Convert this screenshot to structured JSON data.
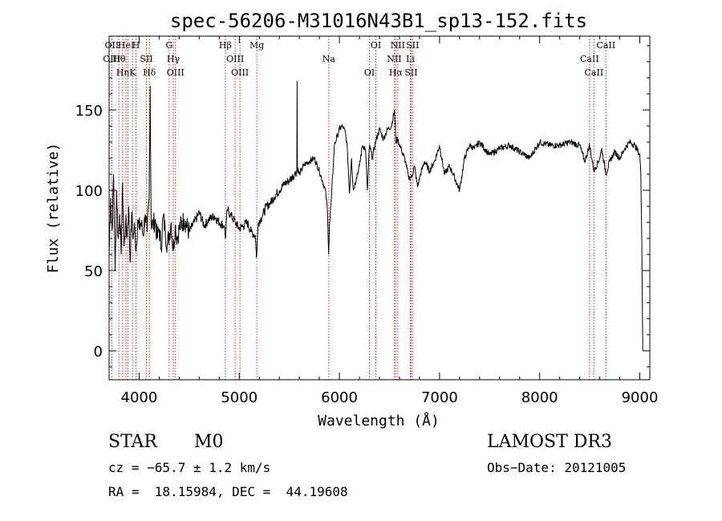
{
  "chart_data": {
    "type": "line",
    "title": "spec-56206-M31016N43B1_sp13-152.fits",
    "xlabel": "Wavelength (Å)",
    "ylabel": "Flux (relative)",
    "xlim": [
      3700,
      9100
    ],
    "ylim": [
      -18,
      196
    ],
    "xticks": [
      4000,
      5000,
      6000,
      7000,
      8000,
      9000
    ],
    "yticks": [
      0,
      50,
      100,
      150
    ],
    "line_color": "#000000",
    "marker_color": "#cc2222",
    "series": [
      {
        "name": "flux",
        "x": [
          3700,
          3715,
          3730,
          3745,
          3760,
          3775,
          3790,
          3805,
          3820,
          3835,
          3850,
          3865,
          3880,
          3895,
          3910,
          3925,
          3940,
          3955,
          3970,
          3985,
          4000,
          4020,
          4040,
          4060,
          4080,
          4100,
          4110,
          4120,
          4140,
          4160,
          4180,
          4200,
          4220,
          4240,
          4260,
          4280,
          4300,
          4320,
          4340,
          4360,
          4380,
          4400,
          4450,
          4500,
          4550,
          4600,
          4650,
          4700,
          4750,
          4800,
          4850,
          4861,
          4880,
          4920,
          4960,
          5000,
          5040,
          5080,
          5120,
          5160,
          5172,
          5190,
          5230,
          5270,
          5310,
          5350,
          5400,
          5450,
          5500,
          5550,
          5575,
          5577,
          5580,
          5600,
          5650,
          5700,
          5750,
          5800,
          5830,
          5860,
          5880,
          5893,
          5900,
          5920,
          5950,
          5980,
          6000,
          6030,
          6060,
          6080,
          6100,
          6120,
          6140,
          6170,
          6200,
          6230,
          6260,
          6280,
          6300,
          6330,
          6360,
          6400,
          6440,
          6480,
          6520,
          6550,
          6563,
          6580,
          6620,
          6660,
          6690,
          6720,
          6750,
          6780,
          6810,
          6850,
          6900,
          6950,
          7000,
          7050,
          7100,
          7150,
          7200,
          7250,
          7300,
          7350,
          7400,
          7500,
          7600,
          7700,
          7800,
          7900,
          8000,
          8100,
          8200,
          8300,
          8400,
          8450,
          8498,
          8542,
          8600,
          8620,
          8662,
          8700,
          8750,
          8800,
          8850,
          8900,
          8950,
          9000,
          9010,
          9020,
          9030
        ],
        "y": [
          60,
          95,
          75,
          110,
          50,
          100,
          70,
          85,
          60,
          105,
          65,
          80,
          72,
          90,
          55,
          85,
          70,
          78,
          62,
          82,
          76,
          80,
          72,
          85,
          74,
          95,
          165,
          80,
          78,
          82,
          70,
          76,
          64,
          84,
          75,
          66,
          72,
          80,
          62,
          78,
          70,
          76,
          82,
          74,
          80,
          86,
          78,
          82,
          84,
          80,
          78,
          70,
          88,
          84,
          80,
          76,
          78,
          80,
          74,
          72,
          58,
          80,
          84,
          90,
          92,
          96,
          100,
          104,
          106,
          110,
          112,
          168,
          114,
          110,
          116,
          118,
          120,
          112,
          106,
          100,
          88,
          60,
          78,
          95,
          128,
          134,
          138,
          140,
          136,
          125,
          98,
          120,
          100,
          108,
          115,
          128,
          126,
          100,
          128,
          120,
          130,
          138,
          132,
          138,
          140,
          150,
          130,
          132,
          125,
          118,
          108,
          108,
          115,
          102,
          110,
          118,
          112,
          118,
          128,
          110,
          115,
          108,
          100,
          120,
          128,
          126,
          130,
          122,
          126,
          128,
          124,
          120,
          130,
          128,
          128,
          130,
          128,
          118,
          128,
          112,
          120,
          126,
          110,
          118,
          124,
          120,
          126,
          130,
          128,
          122,
          110,
          70,
          0
        ]
      }
    ],
    "line_markers": [
      {
        "wave": 3727,
        "labels": [
          "OII",
          "OIII"
        ]
      },
      {
        "wave": 3798,
        "labels": [
          "Hθ"
        ]
      },
      {
        "wave": 3835,
        "labels": [
          "Hη"
        ]
      },
      {
        "wave": 3869,
        "labels": [
          "HeI"
        ]
      },
      {
        "wave": 3889,
        "labels": [
          ""
        ]
      },
      {
        "wave": 3934,
        "labels": [
          "K"
        ]
      },
      {
        "wave": 3969,
        "labels": [
          "H"
        ]
      },
      {
        "wave": 4072,
        "labels": [
          "SII"
        ]
      },
      {
        "wave": 4102,
        "labels": [
          "Hδ"
        ]
      },
      {
        "wave": 4300,
        "labels": [
          "G"
        ]
      },
      {
        "wave": 4341,
        "labels": [
          "Hγ"
        ]
      },
      {
        "wave": 4363,
        "labels": [
          "OIII"
        ]
      },
      {
        "wave": 4861,
        "labels": [
          "Hβ"
        ]
      },
      {
        "wave": 4959,
        "labels": [
          "OIII"
        ]
      },
      {
        "wave": 5007,
        "labels": [
          "OIII"
        ]
      },
      {
        "wave": 5175,
        "labels": [
          "Mg"
        ]
      },
      {
        "wave": 5894,
        "labels": [
          "Na"
        ]
      },
      {
        "wave": 6300,
        "labels": [
          "OI"
        ]
      },
      {
        "wave": 6364,
        "labels": [
          "OI"
        ]
      },
      {
        "wave": 6548,
        "labels": [
          "NII"
        ]
      },
      {
        "wave": 6563,
        "labels": [
          "Hα"
        ]
      },
      {
        "wave": 6583,
        "labels": [
          "NII"
        ]
      },
      {
        "wave": 6708,
        "labels": [
          "Li"
        ]
      },
      {
        "wave": 6716,
        "labels": [
          "SII"
        ]
      },
      {
        "wave": 6731,
        "labels": [
          "SII"
        ]
      },
      {
        "wave": 8498,
        "labels": [
          "CaII"
        ]
      },
      {
        "wave": 8542,
        "labels": [
          "CaII"
        ]
      },
      {
        "wave": 8662,
        "labels": [
          "CaII"
        ]
      }
    ]
  },
  "info": {
    "object_class": "STAR",
    "subclass": "M0",
    "cz": "cz = −65.7 ± 1.2 km/s",
    "coords": "RA =  18.15984, DEC =  44.19608",
    "survey": "LAMOST DR3",
    "obs_date": "Obs−Date: 20121005"
  }
}
